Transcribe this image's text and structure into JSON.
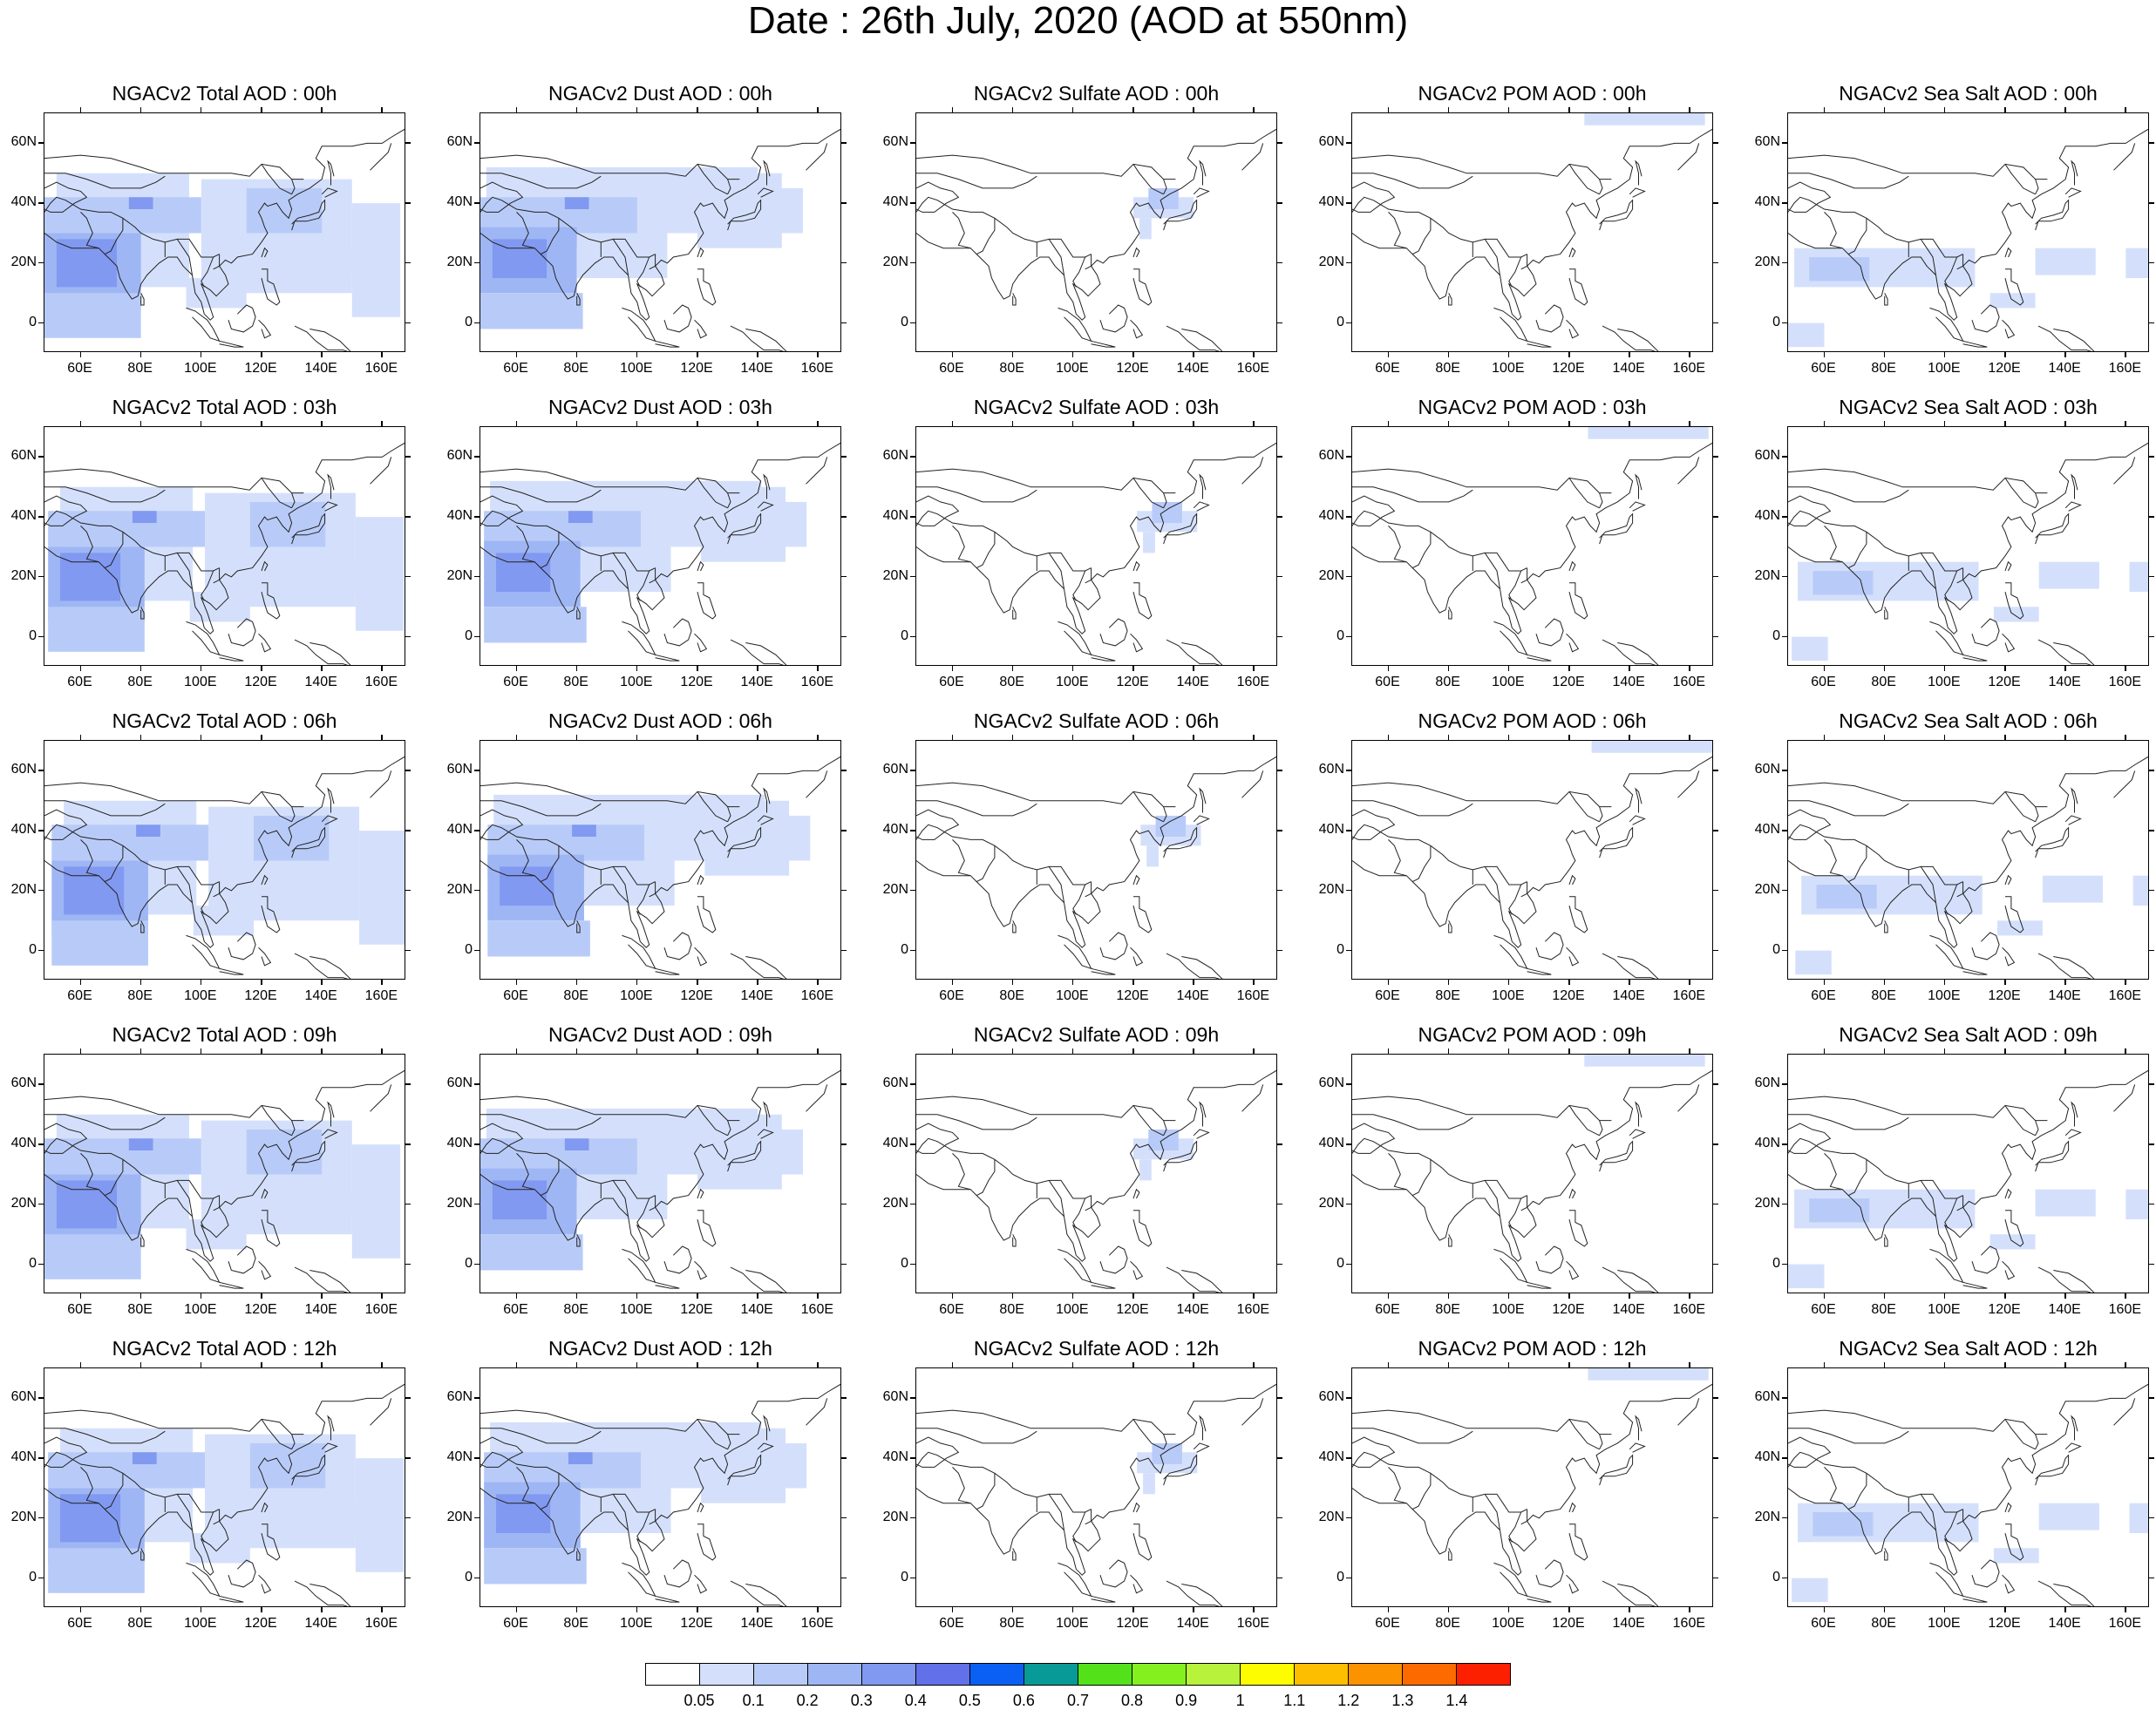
{
  "title": "Date : 26th July, 2020 (AOD at 550nm)",
  "chart_data": {
    "type": "heatmap",
    "description_of_grid": "5 rows (forecast hours) x 5 columns (aerosol species), map panels over Asia",
    "panels": [
      [
        "NGACv2 Total AOD : 00h",
        "NGACv2 Dust AOD : 00h",
        "NGACv2 Sulfate AOD : 00h",
        "NGACv2 POM AOD : 00h",
        "NGACv2 Sea Salt AOD : 00h"
      ],
      [
        "NGACv2 Total AOD : 03h",
        "NGACv2 Dust AOD : 03h",
        "NGACv2 Sulfate AOD : 03h",
        "NGACv2 POM AOD : 03h",
        "NGACv2 Sea Salt AOD : 03h"
      ],
      [
        "NGACv2 Total AOD : 06h",
        "NGACv2 Dust AOD : 06h",
        "NGACv2 Sulfate AOD : 06h",
        "NGACv2 POM AOD : 06h",
        "NGACv2 Sea Salt AOD : 06h"
      ],
      [
        "NGACv2 Total AOD : 09h",
        "NGACv2 Dust AOD : 09h",
        "NGACv2 Sulfate AOD : 09h",
        "NGACv2 POM AOD : 09h",
        "NGACv2 Sea Salt  AOD : 09h"
      ],
      [
        "NGACv2 Total AOD  : 12h",
        "NGACv2 Dust AOD : 12h",
        "NGACv2 Sulfate AOD : 12h",
        "NGACv2 POM  AOD : 12h",
        "NGACv2 Sea Salt  AOD : 12h"
      ]
    ],
    "xticks": [
      "60E",
      "80E",
      "100E",
      "120E",
      "140E",
      "160E"
    ],
    "xtick_values": [
      60,
      80,
      100,
      120,
      140,
      160
    ],
    "yticks": [
      "60N",
      "40N",
      "20N",
      "0"
    ],
    "ytick_values": [
      60,
      40,
      20,
      0
    ],
    "xlim": [
      48,
      168
    ],
    "ylim": [
      -10,
      70
    ],
    "colorbar": {
      "labels": [
        "0.05",
        "0.1",
        "0.2",
        "0.3",
        "0.4",
        "0.5",
        "0.6",
        "0.7",
        "0.8",
        "0.9",
        "1",
        "1.1",
        "1.2",
        "1.3",
        "1.4"
      ],
      "colors": [
        "#ffffff",
        "#d4e0fb",
        "#b8cbf8",
        "#9fb6f5",
        "#8199f0",
        "#6270ea",
        "#0a60f2",
        "#079a96",
        "#53e21a",
        "#84f01e",
        "#b8f23a",
        "#fdfd00",
        "#fdbe00",
        "#fd9200",
        "#fd6a00",
        "#fd2000"
      ]
    },
    "blobs": {
      "total": [
        [
          52,
          50,
          96,
          12,
          1
        ],
        [
          100,
          48,
          150,
          10,
          1
        ],
        [
          150,
          40,
          166,
          2,
          1
        ],
        [
          48,
          42,
          100,
          30,
          2
        ],
        [
          48,
          30,
          80,
          5,
          3
        ],
        [
          52,
          28,
          72,
          12,
          4
        ],
        [
          76,
          42,
          84,
          38,
          4
        ],
        [
          115,
          45,
          140,
          30,
          2
        ],
        [
          48,
          10,
          80,
          -5,
          2
        ],
        [
          95,
          15,
          115,
          5,
          1
        ],
        [
          130,
          25,
          150,
          15,
          1
        ]
      ],
      "dust": [
        [
          50,
          52,
          140,
          30,
          1
        ],
        [
          120,
          50,
          148,
          25,
          1
        ],
        [
          145,
          45,
          155,
          30,
          1
        ],
        [
          48,
          42,
          100,
          25,
          2
        ],
        [
          48,
          32,
          80,
          10,
          3
        ],
        [
          52,
          28,
          70,
          15,
          4
        ],
        [
          76,
          42,
          84,
          38,
          4
        ],
        [
          48,
          10,
          82,
          -2,
          2
        ],
        [
          80,
          30,
          110,
          15,
          1
        ]
      ],
      "sulfate": [
        [
          120,
          42,
          140,
          35,
          1
        ],
        [
          125,
          45,
          135,
          38,
          2
        ],
        [
          122,
          35,
          126,
          28,
          1
        ]
      ],
      "pom": [
        [
          125,
          70,
          165,
          66,
          1
        ]
      ],
      "seasalt": [
        [
          50,
          25,
          110,
          12,
          1
        ],
        [
          55,
          22,
          75,
          14,
          2
        ],
        [
          130,
          25,
          150,
          16,
          1
        ],
        [
          48,
          0,
          60,
          -8,
          1
        ],
        [
          115,
          10,
          130,
          5,
          1
        ],
        [
          160,
          25,
          168,
          15,
          1
        ]
      ]
    },
    "blob_format": "lonW, latN, lonE, latS, color index into colorbar.colors"
  }
}
